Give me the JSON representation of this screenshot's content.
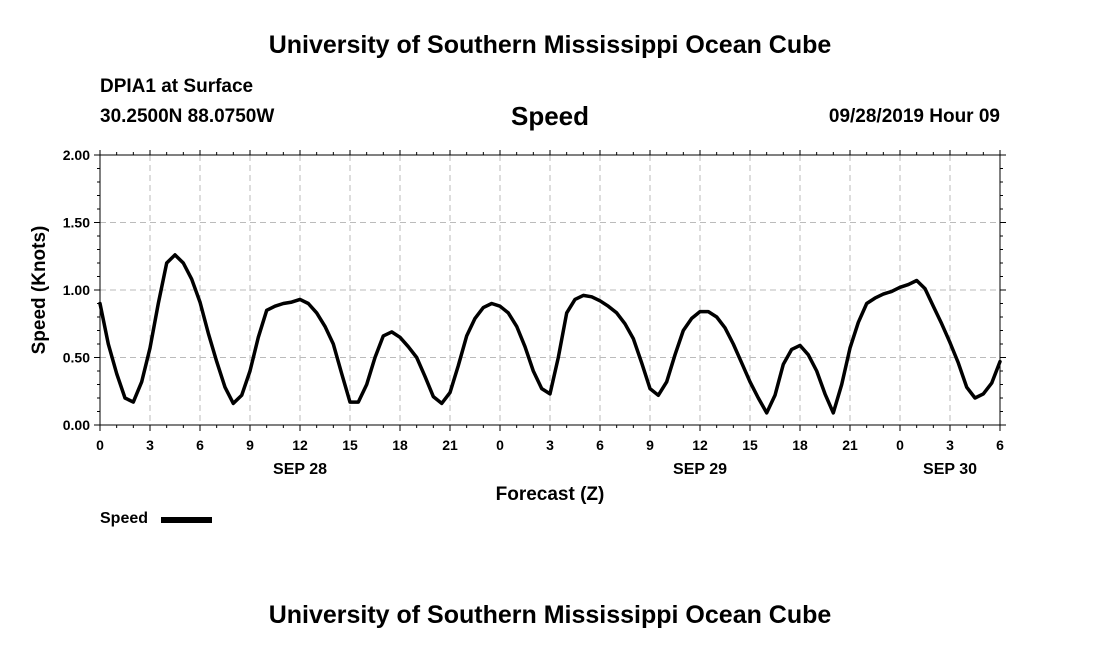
{
  "header": {
    "title": "University of Southern Mississippi Ocean Cube",
    "station": "DPIA1 at Surface",
    "coords": "30.2500N 88.0750W",
    "variable": "Speed",
    "datetime": "09/28/2019 Hour 09"
  },
  "footer": {
    "title": "University of Southern Mississippi Ocean Cube"
  },
  "legend": {
    "label": "Speed",
    "color": "#000000"
  },
  "chart_data": {
    "type": "line",
    "title": "Speed",
    "xlabel": "Forecast (Z)",
    "ylabel": "Speed (Knots)",
    "grid": true,
    "xlim": [
      0,
      54
    ],
    "ylim": [
      0,
      2
    ],
    "x_ticks": [
      0,
      3,
      6,
      9,
      12,
      15,
      18,
      21,
      24,
      27,
      30,
      33,
      36,
      39,
      42,
      45,
      48,
      51,
      54
    ],
    "x_tick_labels": [
      "0",
      "3",
      "6",
      "9",
      "12",
      "15",
      "18",
      "21",
      "0",
      "3",
      "6",
      "9",
      "12",
      "15",
      "18",
      "21",
      "0",
      "3",
      "6"
    ],
    "y_ticks": [
      0,
      0.5,
      1,
      1.5,
      2
    ],
    "y_tick_labels": [
      "0.00",
      "0.50",
      "1.00",
      "1.50",
      "2.00"
    ],
    "date_labels": [
      {
        "x": 12,
        "label": "SEP 28"
      },
      {
        "x": 36,
        "label": "SEP 29"
      },
      {
        "x": 51,
        "label": "SEP 30"
      }
    ],
    "series": [
      {
        "name": "Speed",
        "color": "#000000",
        "x": [
          0,
          0.5,
          1,
          1.5,
          2,
          2.5,
          3,
          3.5,
          4,
          4.5,
          5,
          5.5,
          6,
          6.5,
          7,
          7.5,
          8,
          8.5,
          9,
          9.5,
          10,
          10.5,
          11,
          11.5,
          12,
          12.5,
          13,
          13.5,
          14,
          14.5,
          15,
          15.5,
          16,
          16.5,
          17,
          17.5,
          18,
          18.5,
          19,
          19.5,
          20,
          20.5,
          21,
          21.5,
          22,
          22.5,
          23,
          23.5,
          24,
          24.5,
          25,
          25.5,
          26,
          26.5,
          27,
          27.5,
          28,
          28.5,
          29,
          29.5,
          30,
          30.5,
          31,
          31.5,
          32,
          32.5,
          33,
          33.5,
          34,
          34.5,
          35,
          35.5,
          36,
          36.5,
          37,
          37.5,
          38,
          38.5,
          39,
          39.5,
          40,
          40.5,
          41,
          41.5,
          42,
          42.5,
          43,
          43.5,
          44,
          44.5,
          45,
          45.5,
          46,
          46.5,
          47,
          47.5,
          48,
          48.5,
          49,
          49.5,
          50,
          50.5,
          51,
          51.5,
          52,
          52.5,
          53,
          53.5,
          54
        ],
        "values": [
          0.9,
          0.6,
          0.38,
          0.2,
          0.17,
          0.32,
          0.57,
          0.9,
          1.2,
          1.26,
          1.2,
          1.08,
          0.91,
          0.68,
          0.47,
          0.28,
          0.16,
          0.22,
          0.4,
          0.65,
          0.85,
          0.88,
          0.9,
          0.91,
          0.93,
          0.9,
          0.83,
          0.73,
          0.6,
          0.38,
          0.17,
          0.17,
          0.3,
          0.5,
          0.66,
          0.69,
          0.65,
          0.58,
          0.5,
          0.36,
          0.21,
          0.16,
          0.24,
          0.44,
          0.66,
          0.79,
          0.87,
          0.9,
          0.88,
          0.83,
          0.73,
          0.58,
          0.4,
          0.27,
          0.23,
          0.5,
          0.83,
          0.93,
          0.96,
          0.95,
          0.92,
          0.88,
          0.83,
          0.75,
          0.64,
          0.46,
          0.27,
          0.22,
          0.32,
          0.52,
          0.7,
          0.79,
          0.84,
          0.84,
          0.8,
          0.72,
          0.6,
          0.46,
          0.32,
          0.2,
          0.09,
          0.22,
          0.45,
          0.56,
          0.59,
          0.52,
          0.4,
          0.23,
          0.09,
          0.3,
          0.57,
          0.76,
          0.9,
          0.94,
          0.97,
          0.99,
          1.02,
          1.04,
          1.07,
          1.01,
          0.88,
          0.75,
          0.61,
          0.46,
          0.28,
          0.2,
          0.23,
          0.31,
          0.47
        ]
      }
    ]
  }
}
